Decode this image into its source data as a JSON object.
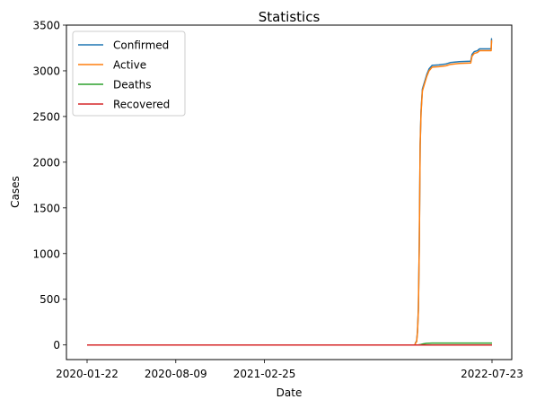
{
  "chart_data": {
    "type": "line",
    "title": "Statistics",
    "xlabel": "Date",
    "ylabel": "Cases",
    "x_ticks": [
      "2020-01-22",
      "2020-08-09",
      "2021-02-25",
      "2022-07-23"
    ],
    "x_range": [
      "2020-01-22",
      "2022-07-23"
    ],
    "ylim": [
      -160,
      3500
    ],
    "y_ticks": [
      0,
      500,
      1000,
      1500,
      2000,
      2500,
      3000,
      3500
    ],
    "grid": false,
    "legend_position": "top-left",
    "series": [
      {
        "name": "Confirmed",
        "color": "#1f77b4",
        "points": [
          [
            "2020-01-22",
            0
          ],
          [
            "2022-01-30",
            0
          ],
          [
            "2022-02-01",
            30
          ],
          [
            "2022-02-03",
            40
          ],
          [
            "2022-02-05",
            150
          ],
          [
            "2022-02-07",
            400
          ],
          [
            "2022-02-09",
            1100
          ],
          [
            "2022-02-11",
            2200
          ],
          [
            "2022-02-13",
            2560
          ],
          [
            "2022-02-16",
            2800
          ],
          [
            "2022-02-21",
            2880
          ],
          [
            "2022-02-26",
            2960
          ],
          [
            "2022-03-03",
            3020
          ],
          [
            "2022-03-10",
            3060
          ],
          [
            "2022-03-25",
            3065
          ],
          [
            "2022-04-10",
            3075
          ],
          [
            "2022-04-20",
            3090
          ],
          [
            "2022-05-10",
            3100
          ],
          [
            "2022-06-05",
            3105
          ],
          [
            "2022-06-08",
            3180
          ],
          [
            "2022-06-13",
            3210
          ],
          [
            "2022-06-20",
            3220
          ],
          [
            "2022-06-25",
            3240
          ],
          [
            "2022-07-21",
            3240
          ],
          [
            "2022-07-22",
            3350
          ],
          [
            "2022-07-23",
            3350
          ]
        ]
      },
      {
        "name": "Active",
        "color": "#ff7f0e",
        "points": [
          [
            "2020-01-22",
            0
          ],
          [
            "2022-01-30",
            0
          ],
          [
            "2022-02-01",
            25
          ],
          [
            "2022-02-03",
            35
          ],
          [
            "2022-02-05",
            140
          ],
          [
            "2022-02-07",
            380
          ],
          [
            "2022-02-09",
            1080
          ],
          [
            "2022-02-11",
            2180
          ],
          [
            "2022-02-13",
            2540
          ],
          [
            "2022-02-16",
            2780
          ],
          [
            "2022-02-21",
            2860
          ],
          [
            "2022-02-26",
            2940
          ],
          [
            "2022-03-03",
            3000
          ],
          [
            "2022-03-10",
            3040
          ],
          [
            "2022-03-25",
            3045
          ],
          [
            "2022-04-10",
            3055
          ],
          [
            "2022-04-20",
            3070
          ],
          [
            "2022-05-10",
            3080
          ],
          [
            "2022-06-05",
            3085
          ],
          [
            "2022-06-08",
            3160
          ],
          [
            "2022-06-13",
            3190
          ],
          [
            "2022-06-20",
            3200
          ],
          [
            "2022-06-25",
            3220
          ],
          [
            "2022-07-21",
            3220
          ],
          [
            "2022-07-22",
            3330
          ],
          [
            "2022-07-23",
            3330
          ]
        ]
      },
      {
        "name": "Deaths",
        "color": "#2ca02c",
        "points": [
          [
            "2020-01-22",
            0
          ],
          [
            "2022-02-06",
            0
          ],
          [
            "2022-02-12",
            5
          ],
          [
            "2022-02-18",
            12
          ],
          [
            "2022-02-25",
            18
          ],
          [
            "2022-03-10",
            20
          ],
          [
            "2022-07-23",
            20
          ]
        ]
      },
      {
        "name": "Recovered",
        "color": "#d62728",
        "points": [
          [
            "2020-01-22",
            0
          ],
          [
            "2022-07-23",
            0
          ]
        ]
      }
    ]
  }
}
